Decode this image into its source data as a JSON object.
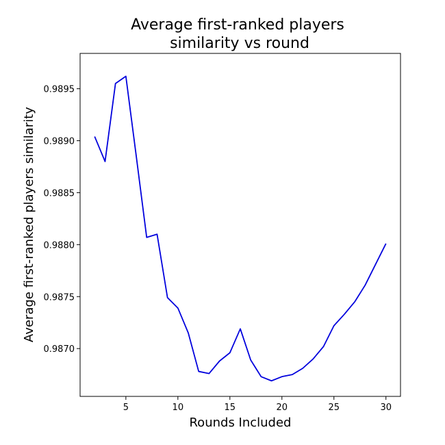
{
  "chart_data": {
    "type": "line",
    "title_lines": [
      "Average first-ranked players",
      "similarity vs round"
    ],
    "xlabel": "Rounds Included",
    "ylabel": "Average first-ranked players similarity",
    "xlim": [
      0.6,
      31.4
    ],
    "ylim": [
      0.98654,
      0.98984
    ],
    "xticks": [
      5,
      10,
      15,
      20,
      25,
      30
    ],
    "yticks": [
      0.987,
      0.9875,
      0.988,
      0.9885,
      0.989,
      0.9895
    ],
    "ytick_decimals": 4,
    "grid": false,
    "line_color": "#0000dd",
    "series": [
      {
        "x": [
          2,
          3,
          4,
          5,
          6,
          7,
          8,
          9,
          10,
          11,
          12,
          13,
          14,
          15,
          16,
          17,
          18,
          19,
          20,
          21,
          22,
          23,
          24,
          25,
          26,
          27,
          28,
          29,
          30
        ],
        "values": [
          0.98904,
          0.9888,
          0.98955,
          0.98962,
          0.98885,
          0.98807,
          0.9881,
          0.98749,
          0.98739,
          0.98715,
          0.98678,
          0.98676,
          0.98688,
          0.98696,
          0.98719,
          0.98689,
          0.98673,
          0.98669,
          0.98673,
          0.98675,
          0.98681,
          0.9869,
          0.98702,
          0.98722,
          0.98733,
          0.98745,
          0.98761,
          0.98781,
          0.98801
        ]
      }
    ]
  }
}
